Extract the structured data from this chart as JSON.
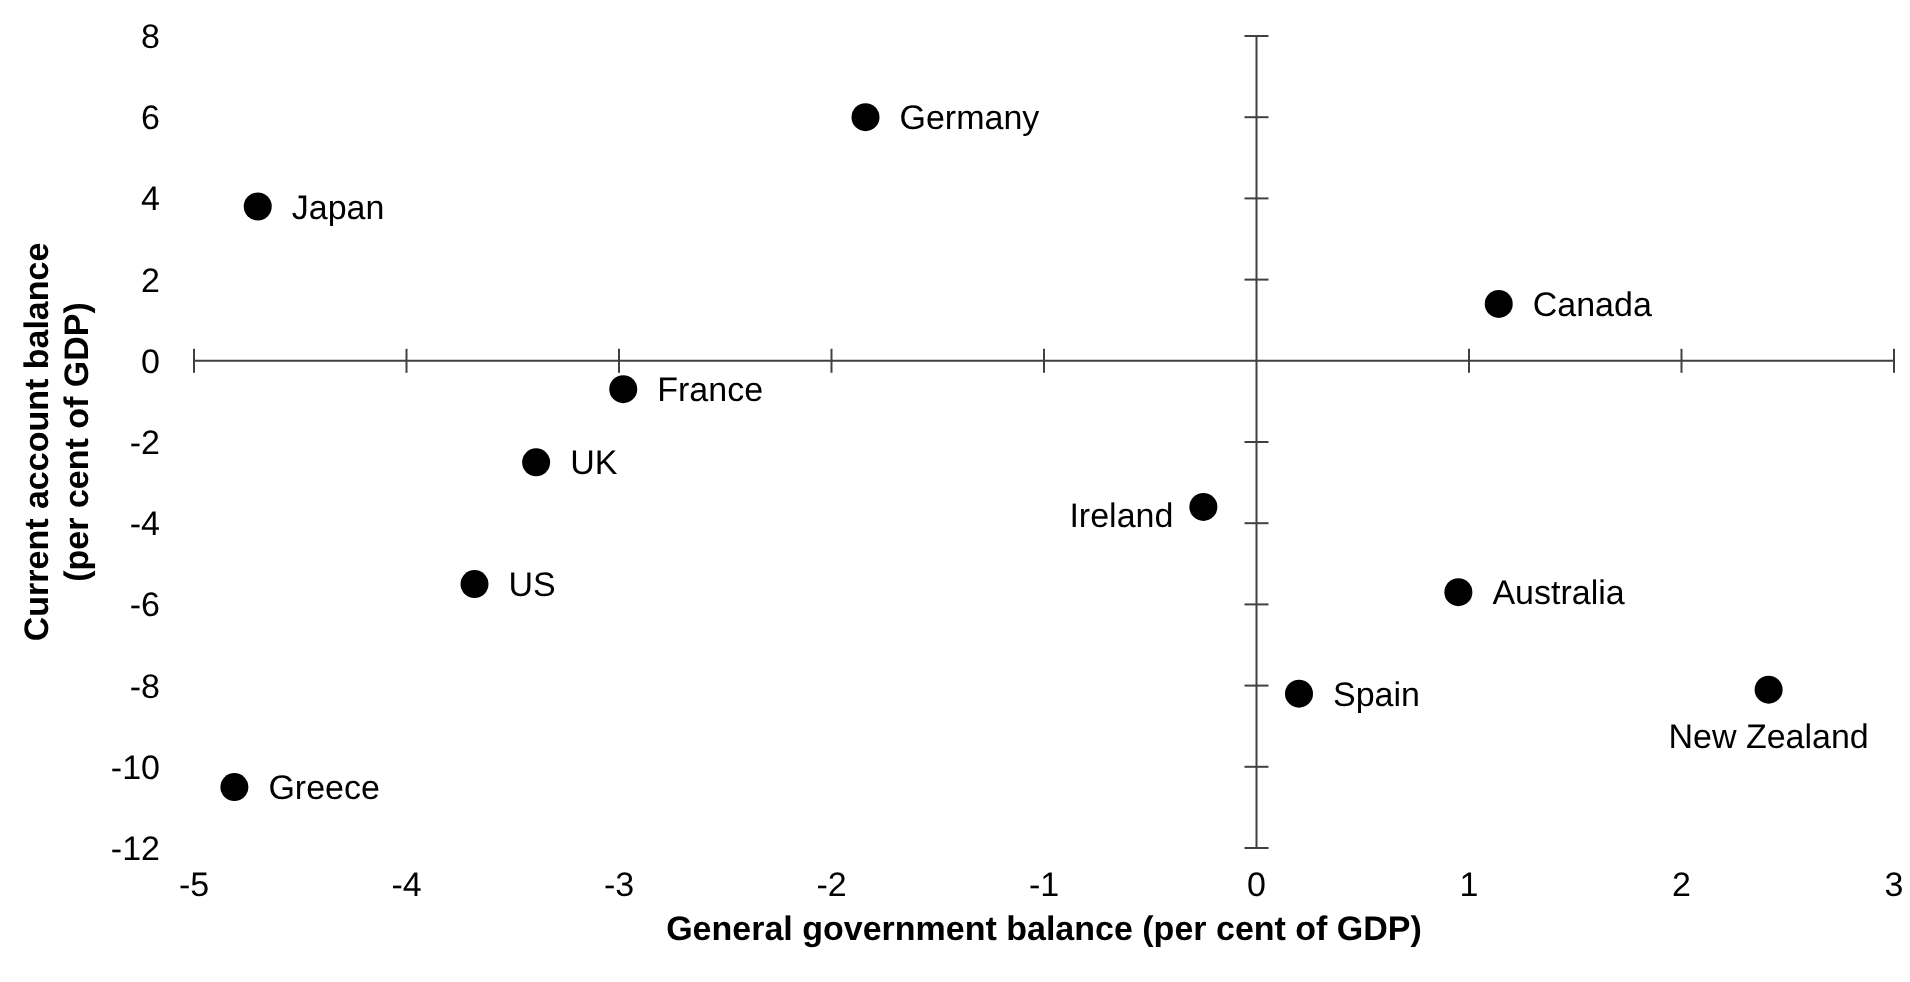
{
  "chart_data": {
    "type": "scatter",
    "xlabel": "General government balance (per cent of GDP)",
    "ylabel": "Current account balance\n(per cent of GDP)",
    "xlim": [
      -5,
      3
    ],
    "ylim": [
      -12,
      8
    ],
    "xticks": [
      -5,
      -4,
      -3,
      -2,
      -1,
      0,
      1,
      2,
      3
    ],
    "yticks": [
      -12,
      -10,
      -8,
      -6,
      -4,
      -2,
      0,
      2,
      4,
      6,
      8
    ],
    "series": [
      {
        "color": "#000000",
        "x": [
          -4.7,
          -1.84,
          -2.98,
          -3.39,
          -3.68,
          -4.81,
          1.14,
          -0.25,
          0.95,
          0.2,
          2.41
        ],
        "values": [
          3.8,
          6.0,
          -0.7,
          -2.5,
          -5.5,
          -10.5,
          1.4,
          -3.6,
          -5.7,
          -8.2,
          -8.1
        ]
      }
    ],
    "annotations": [
      {
        "text": "Japan",
        "x": -4.7,
        "y": 3.8
      },
      {
        "text": "Germany",
        "x": -1.84,
        "y": 6.0
      },
      {
        "text": "France",
        "x": -2.98,
        "y": -0.7
      },
      {
        "text": "UK",
        "x": -3.39,
        "y": -2.5
      },
      {
        "text": "US",
        "x": -3.68,
        "y": -5.5
      },
      {
        "text": "Greece",
        "x": -4.81,
        "y": -10.5
      },
      {
        "text": "Canada",
        "x": 1.14,
        "y": 1.4
      },
      {
        "text": "Ireland",
        "x": -0.25,
        "y": -3.6
      },
      {
        "text": "Australia",
        "x": 0.95,
        "y": -5.7
      },
      {
        "text": "Spain",
        "x": 0.2,
        "y": -8.2
      },
      {
        "text": "New Zealand",
        "x": 2.41,
        "y": -8.1
      }
    ]
  }
}
